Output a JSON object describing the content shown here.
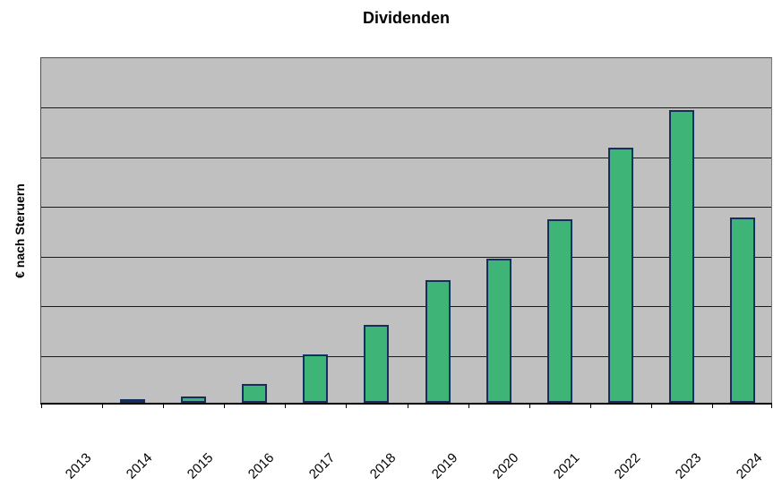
{
  "chart_data": {
    "type": "bar",
    "title": "Dividenden",
    "xlabel": "",
    "ylabel": "€ nach Steruern",
    "categories": [
      "2013",
      "2014",
      "2015",
      "2016",
      "2017",
      "2018",
      "2019",
      "2020",
      "2021",
      "2022",
      "2023",
      "2024"
    ],
    "values": [
      0,
      0.04,
      0.13,
      0.38,
      0.97,
      1.57,
      2.47,
      2.9,
      3.7,
      5.14,
      5.9,
      3.73
    ],
    "value_scale_note": "y-axis has no numeric tick labels; values are in gridline units (1 unit = one horizontal band)",
    "ylim": [
      0,
      7
    ],
    "gridline_count": 7,
    "grid": true,
    "legend": false,
    "plot_background": "#c0c0c0"
  },
  "colors": {
    "bar_fill": "#3fb477",
    "bar_border": "#12305e",
    "plot_bg": "#c0c0c0",
    "gridline": "#1a1a1a",
    "axis": "#000000",
    "text": "#000000"
  }
}
